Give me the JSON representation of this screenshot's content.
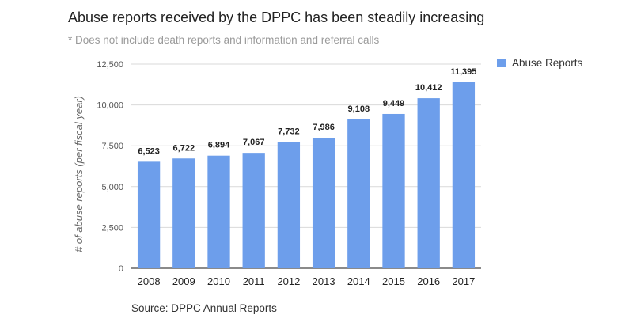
{
  "chart_data": {
    "type": "bar",
    "title": "Abuse reports received by the DPPC has been steadily increasing",
    "subtitle": "* Does not include death reports and information and referral calls",
    "xlabel": "",
    "ylabel": "# of abuse reports (per fiscal year)",
    "categories": [
      "2008",
      "2009",
      "2010",
      "2011",
      "2012",
      "2013",
      "2014",
      "2015",
      "2016",
      "2017"
    ],
    "series": [
      {
        "name": "Abuse Reports",
        "color": "#6d9eeb",
        "values": [
          6523,
          6722,
          6894,
          7067,
          7732,
          7986,
          9108,
          9449,
          10412,
          11395
        ],
        "labels": [
          "6,523",
          "6,722",
          "6,894",
          "7,067",
          "7,732",
          "7,986",
          "9,108",
          "9,449",
          "10,412",
          "11,395"
        ]
      }
    ],
    "ylim": [
      0,
      12500
    ],
    "yticks": [
      0,
      2500,
      5000,
      7500,
      10000,
      12500
    ],
    "ytick_labels": [
      "0",
      "2,500",
      "5,000",
      "7,500",
      "10,000",
      "12,500"
    ],
    "grid": true,
    "legend": "right"
  },
  "source": "Source: DPPC Annual Reports"
}
